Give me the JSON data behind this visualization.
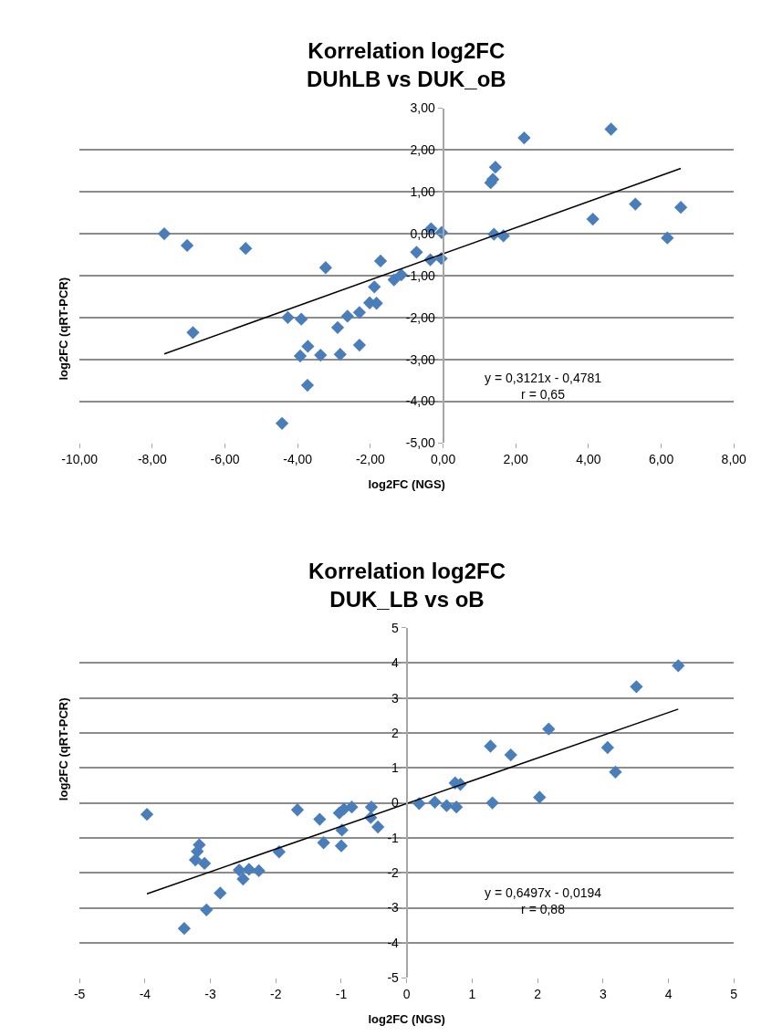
{
  "chart_data": [
    {
      "type": "scatter",
      "title": "Korrelation log2FC\nDUhLB vs DUK_oB",
      "xlabel": "log2FC (NGS)",
      "ylabel": "log2FC (qRT-PCR)",
      "series": [
        {
          "color": "#4a7ebb",
          "marker": "diamond",
          "x": [
            -7.67,
            -7.04,
            -6.88,
            -5.43,
            -3.23,
            -4.27,
            -3.9,
            -4.43,
            -3.93,
            -3.72,
            -3.73,
            -3.37,
            -2.9,
            -2.83,
            -2.63,
            -2.3,
            -2.3,
            -2.02,
            -1.83,
            -1.89,
            -1.72,
            -1.35,
            -1.15,
            -0.73,
            -0.33,
            -0.04,
            -0.35,
            -0.05,
            1.31,
            1.37,
            1.44,
            2.23,
            4.62,
            1.4,
            1.66,
            4.12,
            5.29,
            6.54,
            6.17
          ],
          "values": [
            0.0,
            -0.28,
            -2.36,
            -0.35,
            -0.81,
            -2.0,
            -2.04,
            -4.53,
            -2.92,
            -2.69,
            -3.62,
            -2.9,
            -2.24,
            -2.88,
            -1.97,
            -1.88,
            -2.66,
            -1.65,
            -1.66,
            -1.27,
            -0.65,
            -1.1,
            -0.98,
            -0.44,
            0.12,
            0.03,
            -0.62,
            -0.59,
            1.22,
            1.3,
            1.59,
            2.29,
            2.5,
            -0.01,
            -0.05,
            0.35,
            0.71,
            0.63,
            -0.1
          ]
        },
        {
          "type": "line",
          "color": "#000000",
          "marker": "none",
          "x": [
            -7.67,
            6.54
          ],
          "values": [
            -2.87,
            1.56
          ]
        }
      ],
      "xlim": [
        -10,
        8
      ],
      "xticks": [
        {
          "value": -10,
          "label": "-10,00"
        },
        {
          "value": -8,
          "label": "-8,00"
        },
        {
          "value": -6,
          "label": "-6,00"
        },
        {
          "value": -4,
          "label": "-4,00"
        },
        {
          "value": -2,
          "label": "-2,00"
        },
        {
          "value": 0,
          "label": "0,00"
        },
        {
          "value": 2,
          "label": "2,00"
        },
        {
          "value": 4,
          "label": "4,00"
        },
        {
          "value": 6,
          "label": "6,00"
        },
        {
          "value": 8,
          "label": "8,00"
        }
      ],
      "ylim": [
        -5,
        3
      ],
      "yticks": [
        {
          "value": -5,
          "label": "-5,00"
        },
        {
          "value": -4,
          "label": "-4,00"
        },
        {
          "value": -3,
          "label": "-3,00"
        },
        {
          "value": -2,
          "label": "-2,00"
        },
        {
          "value": -1,
          "label": "-1,00"
        },
        {
          "value": 0,
          "label": "0,00"
        },
        {
          "value": 1,
          "label": "1,00"
        },
        {
          "value": 2,
          "label": "2,00"
        },
        {
          "value": 3,
          "label": "3,00"
        }
      ],
      "grid": "y",
      "annotations": [
        "y = 0,3121x - 0,4781\nr = 0,65"
      ]
    },
    {
      "type": "scatter",
      "title": "Korrelation log2FC\nDUK_LB vs oB",
      "xlabel": "log2FC (NGS)",
      "ylabel": "log2FC (qRT-PCR)",
      "series": [
        {
          "color": "#4a7ebb",
          "marker": "diamond",
          "x": [
            -3.97,
            -3.4,
            -3.06,
            -2.85,
            -3.17,
            -3.2,
            -3.23,
            -3.09,
            -2.56,
            -2.5,
            -2.41,
            -2.26,
            -1.95,
            -1.67,
            -1.33,
            -1.27,
            -1.0,
            -0.99,
            -1.03,
            -0.96,
            -0.84,
            -0.54,
            -0.55,
            -0.44,
            0.19,
            0.43,
            0.61,
            0.76,
            0.74,
            0.82,
            1.31,
            1.28,
            1.59,
            2.03,
            2.17,
            3.07,
            3.19,
            3.51,
            4.15
          ],
          "values": [
            -0.33,
            -3.59,
            -3.06,
            -2.58,
            -1.2,
            -1.39,
            -1.63,
            -1.73,
            -1.92,
            -2.18,
            -1.9,
            -1.94,
            -1.4,
            -0.2,
            -0.47,
            -1.14,
            -1.23,
            -0.78,
            -0.29,
            -0.18,
            -0.12,
            -0.12,
            -0.42,
            -0.69,
            -0.02,
            0.02,
            -0.08,
            -0.12,
            0.57,
            0.53,
            0.0,
            1.62,
            1.37,
            0.16,
            2.11,
            1.58,
            0.88,
            3.32,
            3.92
          ]
        },
        {
          "type": "line",
          "color": "#000000",
          "marker": "none",
          "x": [
            -3.97,
            4.15
          ],
          "values": [
            -2.6,
            2.68
          ]
        }
      ],
      "xlim": [
        -5,
        5
      ],
      "xticks": [
        -5,
        -4,
        -3,
        -2,
        -1,
        0,
        1,
        2,
        3,
        4,
        5
      ],
      "ylim": [
        -5,
        5
      ],
      "yticks": [
        -5,
        -4,
        -3,
        -2,
        -1,
        0,
        1,
        2,
        3,
        4,
        5
      ],
      "grid": "y",
      "annotations": [
        "y = 0,6497x - 0,0194\nr = 0,88"
      ]
    }
  ]
}
